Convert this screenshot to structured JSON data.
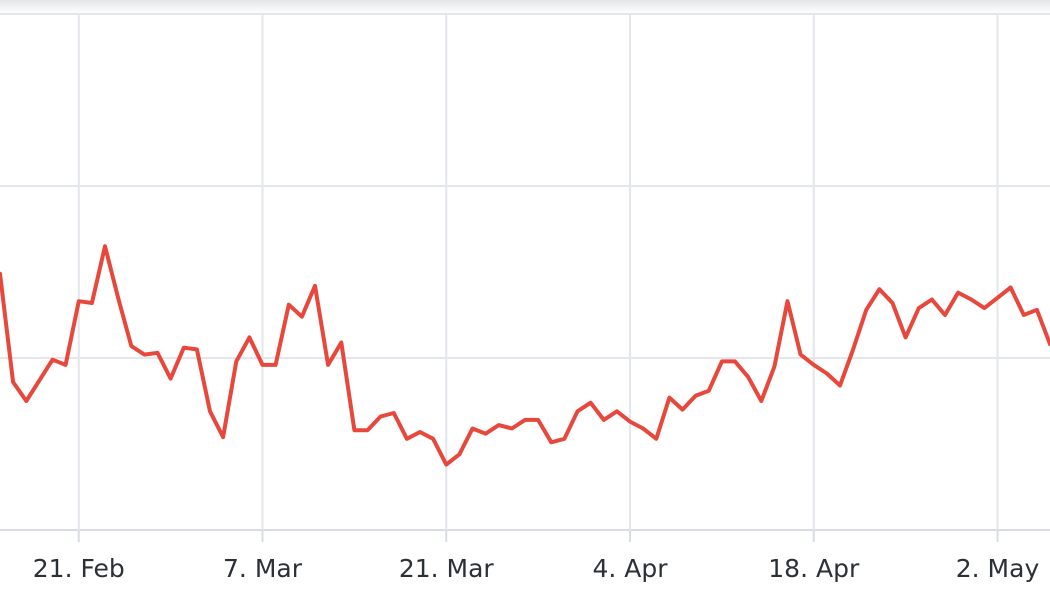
{
  "chart_data": {
    "type": "line",
    "title": "",
    "xlabel": "",
    "ylabel": "",
    "x_tick_labels": [
      "21. Feb",
      "7. Mar",
      "21. Mar",
      "4. Apr",
      "18. Apr",
      "2. May"
    ],
    "x_tick_dates": [
      "2023-02-21",
      "2023-03-07",
      "2023-03-21",
      "2023-04-04",
      "2023-04-18",
      "2023-05-02"
    ],
    "xlim": [
      "2023-02-15",
      "2023-05-06"
    ],
    "y_gridlines": [
      0,
      1,
      2,
      3
    ],
    "ylim": [
      0,
      3
    ],
    "grid": true,
    "legend": "none",
    "color": "#e8483c",
    "series": [
      {
        "x": [
          "2023-02-15",
          "2023-02-16",
          "2023-02-17",
          "2023-02-18",
          "2023-02-19",
          "2023-02-20",
          "2023-02-21",
          "2023-02-22",
          "2023-02-23",
          "2023-02-24",
          "2023-02-25",
          "2023-02-26",
          "2023-02-27",
          "2023-02-28",
          "2023-03-01",
          "2023-03-02",
          "2023-03-03",
          "2023-03-04",
          "2023-03-05",
          "2023-03-06",
          "2023-03-07",
          "2023-03-08",
          "2023-03-09",
          "2023-03-10",
          "2023-03-11",
          "2023-03-12",
          "2023-03-13",
          "2023-03-14",
          "2023-03-15",
          "2023-03-16",
          "2023-03-17",
          "2023-03-18",
          "2023-03-19",
          "2023-03-20",
          "2023-03-21",
          "2023-03-22",
          "2023-03-23",
          "2023-03-24",
          "2023-03-25",
          "2023-03-26",
          "2023-03-27",
          "2023-03-28",
          "2023-03-29",
          "2023-03-30",
          "2023-03-31",
          "2023-04-01",
          "2023-04-02",
          "2023-04-03",
          "2023-04-04",
          "2023-04-05",
          "2023-04-06",
          "2023-04-07",
          "2023-04-08",
          "2023-04-09",
          "2023-04-10",
          "2023-04-11",
          "2023-04-12",
          "2023-04-13",
          "2023-04-14",
          "2023-04-15",
          "2023-04-16",
          "2023-04-17",
          "2023-04-18",
          "2023-04-19",
          "2023-04-20",
          "2023-04-21",
          "2023-04-22",
          "2023-04-23",
          "2023-04-24",
          "2023-04-25",
          "2023-04-26",
          "2023-04-27",
          "2023-04-28",
          "2023-04-29",
          "2023-04-30",
          "2023-05-01",
          "2023-05-02",
          "2023-05-03",
          "2023-05-04",
          "2023-05-05",
          "2023-05-06"
        ],
        "values": [
          1.49,
          0.86,
          0.75,
          0.87,
          0.99,
          0.96,
          1.33,
          1.32,
          1.65,
          1.35,
          1.07,
          1.02,
          1.03,
          0.88,
          1.06,
          1.05,
          0.69,
          0.54,
          0.98,
          1.12,
          0.96,
          0.96,
          1.31,
          1.24,
          1.42,
          0.96,
          1.09,
          0.58,
          0.58,
          0.66,
          0.68,
          0.53,
          0.57,
          0.53,
          0.38,
          0.44,
          0.59,
          0.56,
          0.61,
          0.59,
          0.64,
          0.64,
          0.51,
          0.53,
          0.69,
          0.74,
          0.64,
          0.69,
          0.63,
          0.59,
          0.53,
          0.77,
          0.7,
          0.78,
          0.81,
          0.98,
          0.98,
          0.89,
          0.75,
          0.95,
          1.33,
          1.02,
          0.96,
          0.91,
          0.84,
          1.05,
          1.28,
          1.4,
          1.32,
          1.12,
          1.29,
          1.34,
          1.25,
          1.38,
          1.34,
          1.29,
          1.35,
          1.41,
          1.25,
          1.28,
          1.08
        ]
      }
    ]
  }
}
